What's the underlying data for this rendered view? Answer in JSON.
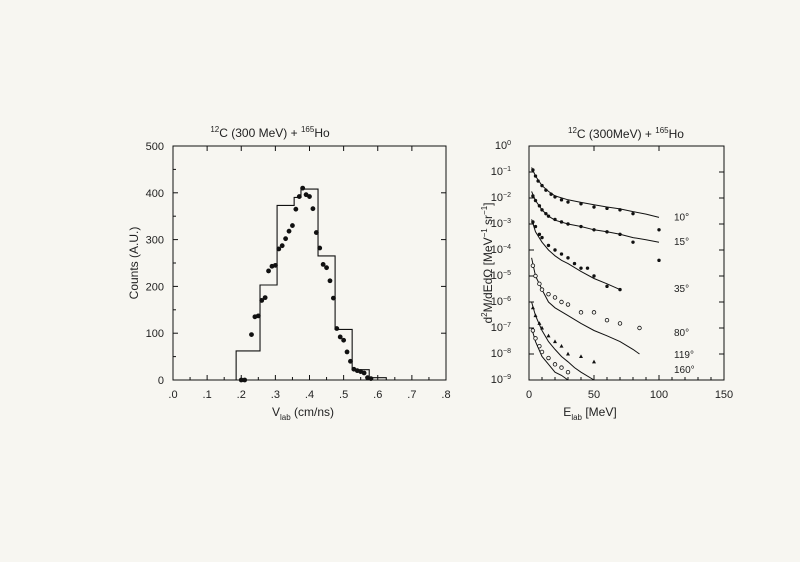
{
  "chart_data": [
    {
      "type": "histogram",
      "title": {
        "pre_sup": "12",
        "a": "C (300 MeV) + ",
        "mid_sup": "165",
        "b": "Ho"
      },
      "xlabel": {
        "main": "V",
        "sub": "lab",
        "rest": " (cm/ns)"
      },
      "ylabel": "Counts (A.U.)",
      "xlim": [
        0.0,
        0.8
      ],
      "ylim": [
        0,
        500
      ],
      "x_ticks": [
        0.0,
        0.1,
        0.2,
        0.3,
        0.4,
        0.5,
        0.6,
        0.7,
        0.8
      ],
      "x_tick_labels": [
        ".0",
        ".1",
        ".2",
        ".3",
        ".4",
        ".5",
        ".6",
        ".7",
        ".8"
      ],
      "y_ticks": [
        0,
        100,
        200,
        300,
        400,
        500
      ],
      "y_tick_labels": [
        "0",
        "100",
        "200",
        "300",
        "400",
        "500"
      ],
      "histogram_bins": [
        {
          "x0": 0.185,
          "x1": 0.215,
          "y": 62
        },
        {
          "x0": 0.215,
          "x1": 0.255,
          "y": 62
        },
        {
          "x0": 0.255,
          "x1": 0.305,
          "y": 203
        },
        {
          "x0": 0.305,
          "x1": 0.355,
          "y": 373
        },
        {
          "x0": 0.355,
          "x1": 0.375,
          "y": 390
        },
        {
          "x0": 0.375,
          "x1": 0.425,
          "y": 408
        },
        {
          "x0": 0.425,
          "x1": 0.475,
          "y": 265
        },
        {
          "x0": 0.475,
          "x1": 0.525,
          "y": 108
        },
        {
          "x0": 0.525,
          "x1": 0.575,
          "y": 22
        },
        {
          "x0": 0.575,
          "x1": 0.625,
          "y": 5
        }
      ],
      "points": {
        "x": [
          0.2,
          0.21,
          0.23,
          0.24,
          0.25,
          0.26,
          0.27,
          0.28,
          0.29,
          0.3,
          0.31,
          0.32,
          0.33,
          0.34,
          0.35,
          0.36,
          0.37,
          0.38,
          0.39,
          0.4,
          0.41,
          0.42,
          0.43,
          0.44,
          0.45,
          0.46,
          0.47,
          0.48,
          0.49,
          0.5,
          0.51,
          0.52,
          0.53,
          0.54,
          0.55,
          0.56,
          0.57,
          0.58
        ],
        "y": [
          0,
          0,
          97,
          135,
          137,
          170,
          176,
          233,
          243,
          245,
          280,
          287,
          302,
          318,
          330,
          365,
          392,
          410,
          396,
          392,
          366,
          315,
          282,
          247,
          240,
          212,
          175,
          110,
          92,
          85,
          60,
          40,
          23,
          20,
          18,
          15,
          5,
          3
        ]
      }
    },
    {
      "type": "line",
      "title": {
        "pre_sup": "12",
        "a": "C (300MeV) + ",
        "mid_sup": "165",
        "b": "Ho"
      },
      "xlabel": {
        "main": "E",
        "sub": "lab",
        "rest": " [MeV]"
      },
      "ylabel": {
        "pre": "d",
        "sup1": "2",
        "mid": "M/dEdΩ [MeV",
        "sup2": "−1",
        "mid2": " sr",
        "sup3": "−1",
        "end": "]"
      },
      "xlim": [
        0,
        150
      ],
      "ylim_log10": [
        -9,
        0
      ],
      "x_ticks": [
        0,
        50,
        100,
        150
      ],
      "x_tick_labels": [
        "0",
        "50",
        "100",
        "150"
      ],
      "y_ticks_exp": [
        0,
        -1,
        -2,
        -3,
        -4,
        -5,
        -6,
        -7,
        -8,
        -9
      ],
      "y_tick_base": "10",
      "y_tick_exp_labels": [
        "0",
        "−1",
        "−2",
        "−3",
        "−4",
        "−5",
        "−6",
        "−7",
        "−8",
        "−9"
      ],
      "series": [
        {
          "name": "10°",
          "curve": {
            "x": [
              2,
              5,
              10,
              15,
              20,
              30,
              40,
              50,
              60,
              70,
              80,
              90,
              100
            ],
            "y": [
              0.15,
              0.07,
              0.03,
              0.018,
              0.012,
              0.0085,
              0.0068,
              0.0055,
              0.0045,
              0.0038,
              0.003,
              0.0024,
              0.0018
            ]
          },
          "points": {
            "x": [
              3,
              5,
              7,
              10,
              13,
              17,
              20,
              25,
              30,
              40,
              50,
              60,
              70,
              80,
              100
            ],
            "y": [
              0.12,
              0.07,
              0.045,
              0.03,
              0.02,
              0.014,
              0.011,
              0.0085,
              0.007,
              0.006,
              0.0045,
              0.004,
              0.0035,
              0.0025,
              0.0006
            ]
          }
        },
        {
          "name": "15°",
          "curve": {
            "x": [
              2,
              5,
              10,
              15,
              20,
              30,
              40,
              50,
              60,
              70,
              80,
              90,
              100
            ],
            "y": [
              0.018,
              0.008,
              0.0035,
              0.002,
              0.0014,
              0.001,
              0.0008,
              0.0006,
              0.0005,
              0.0004,
              0.0003,
              0.00025,
              0.0002
            ]
          },
          "points": {
            "x": [
              3,
              5,
              8,
              10,
              13,
              15,
              20,
              25,
              30,
              40,
              50,
              60,
              70,
              80,
              100
            ],
            "y": [
              0.012,
              0.008,
              0.005,
              0.0035,
              0.0025,
              0.002,
              0.0015,
              0.0012,
              0.001,
              0.0008,
              0.0006,
              0.0005,
              0.0004,
              0.0002,
              4e-05
            ]
          }
        },
        {
          "name": "35°",
          "curve": {
            "x": [
              2,
              5,
              10,
              15,
              20,
              25,
              30,
              40,
              50,
              60,
              70
            ],
            "y": [
              0.0015,
              0.0005,
              0.0002,
              0.0001,
              6e-05,
              4e-05,
              3e-05,
              1.5e-05,
              8e-06,
              5e-06,
              3e-06
            ]
          },
          "points": {
            "x": [
              3,
              5,
              8,
              10,
              15,
              20,
              25,
              30,
              35,
              40,
              45,
              50,
              60,
              70
            ],
            "y": [
              0.0012,
              0.0008,
              0.0004,
              0.0003,
              0.00015,
              0.0001,
              7e-05,
              5e-05,
              3e-05,
              2e-05,
              2e-05,
              1e-05,
              4e-06,
              3e-06
            ]
          }
        },
        {
          "name": "80°",
          "curve": {
            "x": [
              2,
              5,
              10,
              15,
              20,
              30,
              40,
              50,
              60,
              70,
              80,
              85
            ],
            "y": [
              5e-05,
              1e-05,
              3e-06,
              1e-06,
              6e-07,
              3e-07,
              1.5e-07,
              8e-08,
              5e-08,
              3e-08,
              1.5e-08,
              1e-08
            ]
          },
          "points": {
            "x": [
              3,
              5,
              8,
              10,
              15,
              20,
              25,
              30,
              40,
              50,
              60,
              70,
              85
            ],
            "y": [
              2.5e-05,
              1e-05,
              5e-06,
              3e-06,
              2e-06,
              1.5e-06,
              1e-06,
              8e-07,
              4e-07,
              4e-07,
              2e-07,
              1.5e-07,
              1e-07
            ]
          }
        },
        {
          "name": "119°",
          "curve": {
            "x": [
              2,
              5,
              10,
              15,
              20,
              25,
              30,
              35,
              40,
              50
            ],
            "y": [
              1e-06,
              3e-07,
              8e-08,
              3e-08,
              1.5e-08,
              8e-09,
              5e-09,
              3e-09,
              2e-09,
              1e-09
            ]
          },
          "points": {
            "x": [
              3,
              5,
              8,
              10,
              15,
              20,
              25,
              30,
              40,
              50
            ],
            "y": [
              6e-07,
              3e-07,
              1.5e-07,
              1e-07,
              5e-08,
              3e-08,
              2e-08,
              1e-08,
              8e-09,
              5e-09
            ]
          }
        },
        {
          "name": "160°",
          "curve": {
            "x": [
              2,
              5,
              10,
              15,
              20,
              25,
              30,
              35
            ],
            "y": [
              1e-07,
              3e-08,
              8e-09,
              4e-09,
              2e-09,
              1.5e-09,
              1e-09,
              1e-09
            ]
          },
          "points": {
            "x": [
              3,
              5,
              8,
              10,
              15,
              20,
              25,
              30
            ],
            "y": [
              8e-08,
              4e-08,
              2e-08,
              1.2e-08,
              7e-09,
              4e-09,
              3e-09,
              2e-09
            ]
          }
        }
      ]
    }
  ]
}
